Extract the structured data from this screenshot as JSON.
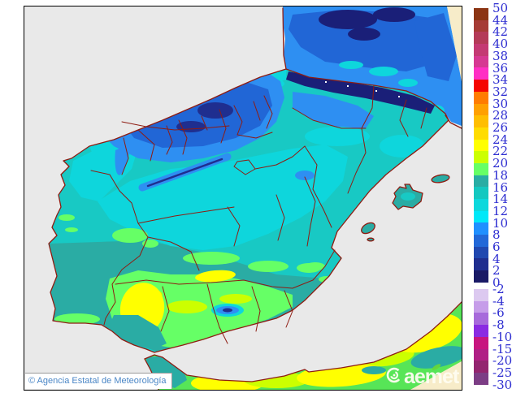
{
  "palette": {
    "sea": "#E9E9E9",
    "outside_domain": "#F7ECC9",
    "coast_border": "#8E1C12",
    "frame": "#000000",
    "scale_label_color": "#2B2BD0",
    "attribution_color": "#4A86C6",
    "attribution_bg": "#FFFFFF",
    "watermark_color": "#FFFDF2",
    "watermark_accent": "#66D73A"
  },
  "attribution": {
    "text": "© Agencia Estatal de Meteorología"
  },
  "watermark": {
    "text": "aemet"
  },
  "colorbar": {
    "unit": "temperature-celsius",
    "sections": [
      {
        "name": "above-zero",
        "boundary_labels": [
          "50",
          "44",
          "42",
          "40",
          "38",
          "36",
          "34",
          "32",
          "30",
          "28",
          "26",
          "24",
          "22",
          "20",
          "18",
          "16",
          "14",
          "12",
          "10",
          "8",
          "6",
          "4",
          "2",
          "0"
        ],
        "band_colors": [
          "#8B3413",
          "#A63B36",
          "#B43A58",
          "#C43973",
          "#D63892",
          "#FF2FC4",
          "#F50500",
          "#FF7C00",
          "#FFA000",
          "#FFBE00",
          "#FFDC00",
          "#FFFF00",
          "#CCFF00",
          "#66FF66",
          "#29ADA4",
          "#14C8C0",
          "#0DD8DC",
          "#00E8F8",
          "#2090FF",
          "#2268D8",
          "#2048B0",
          "#1F2E8F",
          "#1A1A66"
        ]
      },
      {
        "name": "below-zero",
        "boundary_labels": [
          "-2",
          "-4",
          "-6",
          "-8",
          "-10",
          "-15",
          "-20",
          "-25",
          "-30"
        ],
        "band_colors": [
          "#DCC9F0",
          "#C69DE9",
          "#A76ADB",
          "#8A2BE2",
          "#C7157F",
          "#B01F85",
          "#93256F",
          "#7C3D85"
        ]
      }
    ]
  }
}
